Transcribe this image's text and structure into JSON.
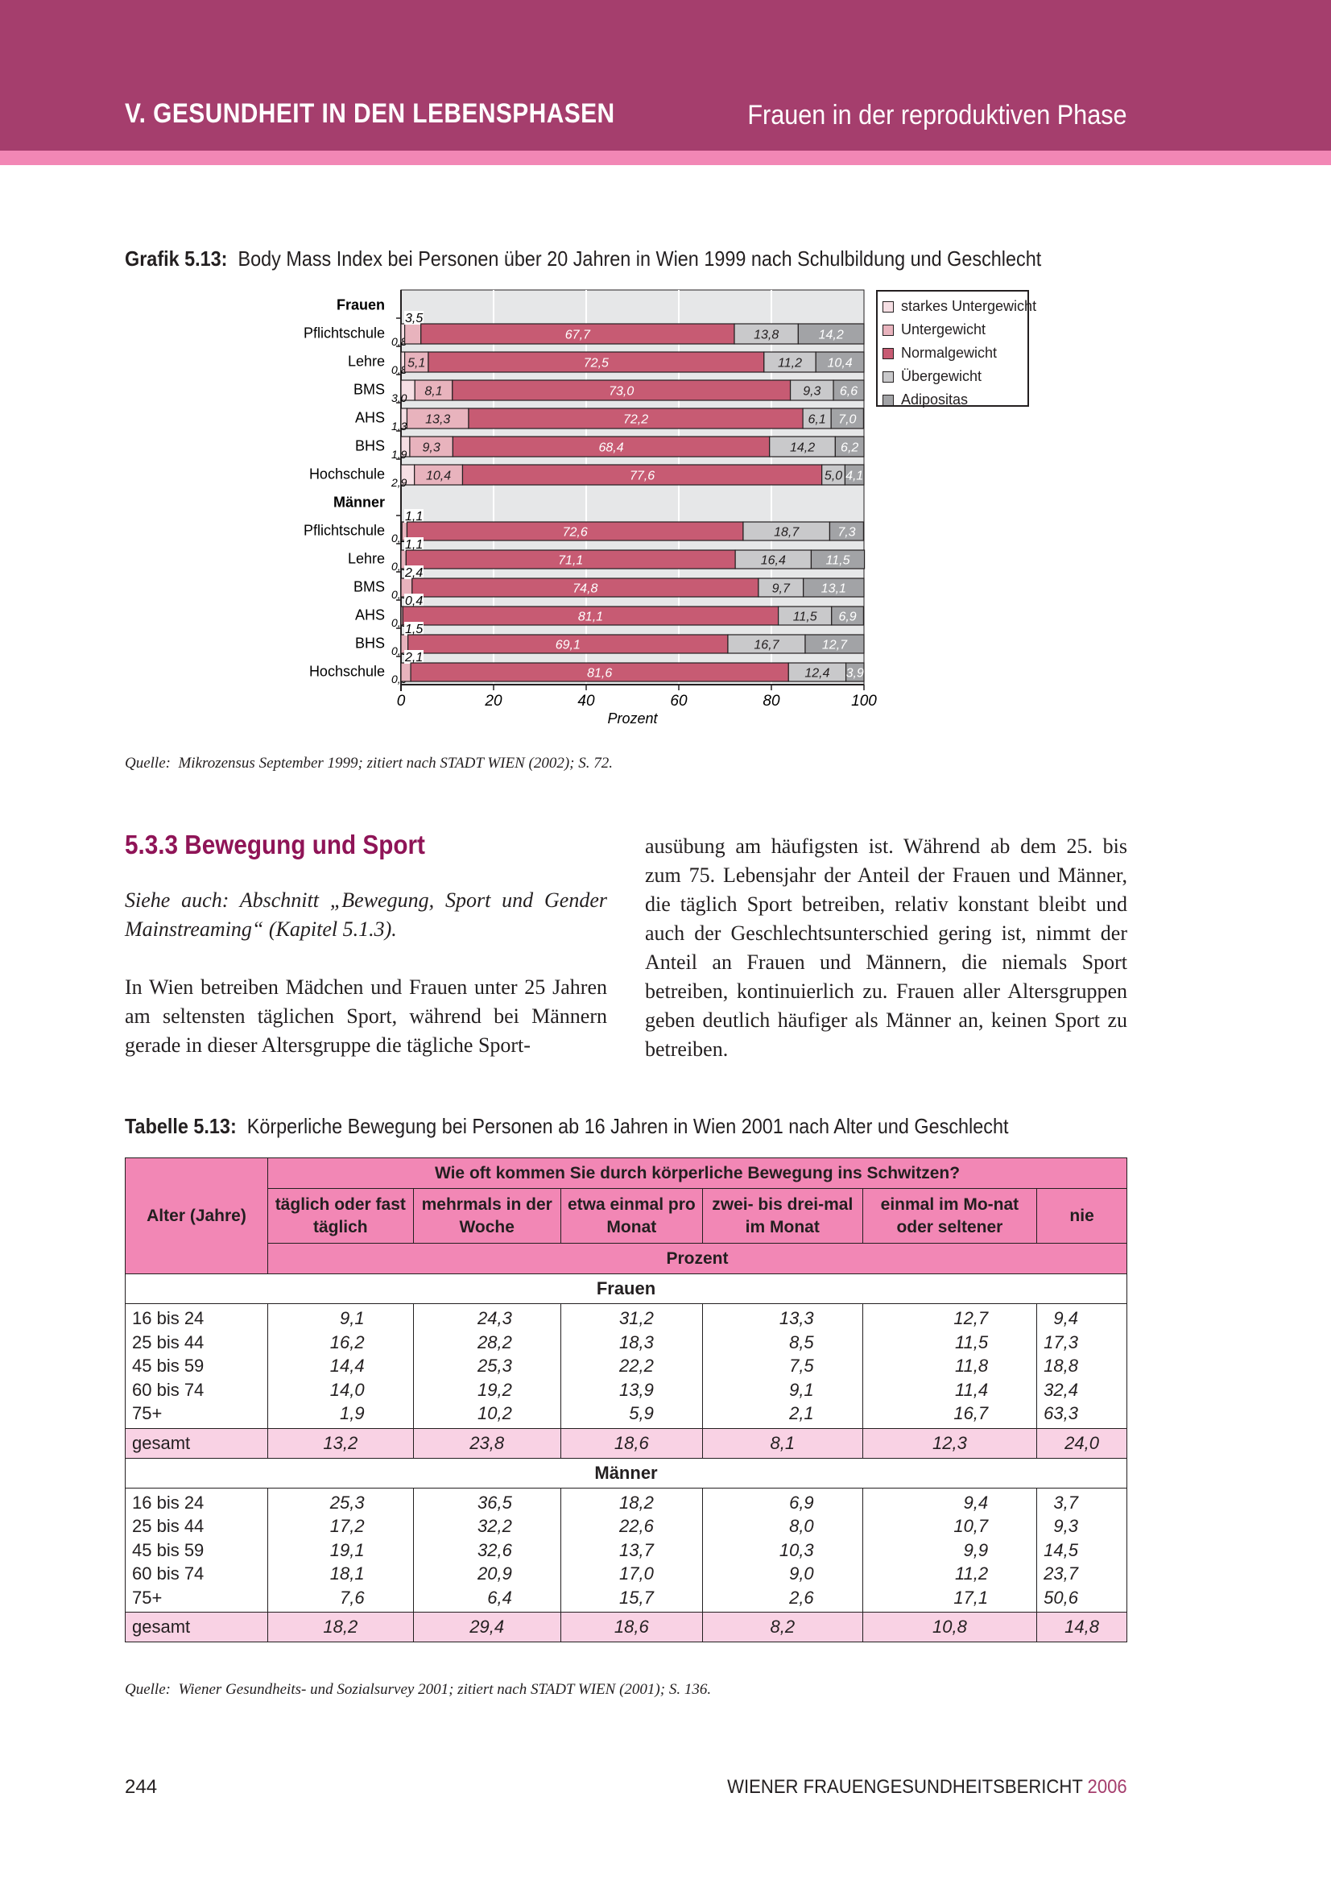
{
  "header": {
    "chapter": "V. GESUNDHEIT IN DEN LEBENSPHASEN",
    "section": "Frauen in der reproduktiven Phase",
    "color": "#a53e6d",
    "stripe_color": "#f287b5"
  },
  "figure": {
    "label": "Grafik 5.13:",
    "title": "Body Mass Index bei Personen über 20 Jahren in Wien 1999 nach Schulbildung und Geschlecht",
    "source_label": "Quelle:",
    "source": "Mikrozensus September 1999; zitiert nach STADT WIEN (2002); S. 72."
  },
  "chart_data": {
    "type": "bar",
    "orientation": "horizontal",
    "stacked": true,
    "xlabel": "Prozent",
    "xlim": [
      0,
      100
    ],
    "xticks": [
      "0",
      "20",
      "40",
      "60",
      "80",
      "100"
    ],
    "grid": true,
    "legend_placement": "right",
    "series": [
      {
        "name": "starkes Untergewicht",
        "color": "#f6dfe4"
      },
      {
        "name": "Untergewicht",
        "color": "#e8b3bd"
      },
      {
        "name": "Normalgewicht",
        "color": "#c75b73"
      },
      {
        "name": "Übergewicht",
        "color": "#c9c9cb"
      },
      {
        "name": "Adipositas",
        "color": "#a2a3a6"
      }
    ],
    "groups": [
      {
        "name": "Frauen",
        "rows": [
          {
            "label": "Pflichtschule",
            "values": [
              0.8,
              3.5,
              67.7,
              13.8,
              14.2
            ],
            "labels": [
              "0,8",
              "3,5",
              "67,7",
              "13,8",
              "14,2"
            ]
          },
          {
            "label": "Lehre",
            "values": [
              0.8,
              5.1,
              72.5,
              11.2,
              10.4
            ],
            "labels": [
              "0,8",
              "5,1",
              "72,5",
              "11,2",
              "10,4"
            ]
          },
          {
            "label": "BMS",
            "values": [
              3.0,
              8.1,
              73.0,
              9.3,
              6.6
            ],
            "labels": [
              "3,0",
              "8,1",
              "73,0",
              "9,3",
              "6,6"
            ]
          },
          {
            "label": "AHS",
            "values": [
              1.3,
              13.3,
              72.2,
              6.1,
              7.0
            ],
            "labels": [
              "1,3",
              "13,3",
              "72,2",
              "6,1",
              "7,0"
            ]
          },
          {
            "label": "BHS",
            "values": [
              1.9,
              9.3,
              68.4,
              14.2,
              6.2
            ],
            "labels": [
              "1,9",
              "9,3",
              "68,4",
              "14,2",
              "6,2"
            ]
          },
          {
            "label": "Hochschule",
            "values": [
              2.9,
              10.4,
              77.6,
              5.0,
              4.1
            ],
            "labels": [
              "2,9",
              "10,4",
              "77,6",
              "5,0",
              "4,1"
            ]
          }
        ]
      },
      {
        "name": "Männer",
        "rows": [
          {
            "label": "Pflichtschule",
            "values": [
              0.2,
              1.1,
              72.6,
              18.7,
              7.3
            ],
            "labels": [
              "0,2",
              "1,1",
              "72,6",
              "18,7",
              "7,3"
            ]
          },
          {
            "label": "Lehre",
            "values": [
              0.0,
              1.1,
              71.1,
              16.4,
              11.5
            ],
            "labels": [
              "0,0",
              "1,1",
              "71,1",
              "16,4",
              "11,5"
            ]
          },
          {
            "label": "BMS",
            "values": [
              0.0,
              2.4,
              74.8,
              9.7,
              13.1
            ],
            "labels": [
              "0,0",
              "2,4",
              "74,8",
              "9,7",
              "13,1"
            ]
          },
          {
            "label": "AHS",
            "values": [
              0.0,
              0.4,
              81.1,
              11.5,
              6.9
            ],
            "labels": [
              "0,0",
              "0,4",
              "81,1",
              "11,5",
              "6,9"
            ]
          },
          {
            "label": "BHS",
            "values": [
              0.0,
              1.5,
              69.1,
              16.7,
              12.7
            ],
            "labels": [
              "0,0",
              "1,5",
              "69,1",
              "16,7",
              "12,7"
            ]
          },
          {
            "label": "Hochschule",
            "values": [
              0.0,
              2.1,
              81.6,
              12.4,
              3.9
            ],
            "labels": [
              "0,0",
              "2,1",
              "81,6",
              "12,4",
              "3,9"
            ]
          }
        ]
      }
    ]
  },
  "section": {
    "heading": "5.3.3  Bewegung und Sport",
    "see_also": "Siehe auch: Abschnitt „Bewegung, Sport und Gender Mainstreaming“ (Kapitel 5.1.3).",
    "para_left": "In Wien betreiben Mädchen und Frauen unter 25 Jahren am seltensten täglichen Sport, während bei Männern gerade in dieser Altersgruppe die tägliche Sport-",
    "para_right": "ausübung am häufigsten ist. Während ab dem 25. bis zum 75. Lebensjahr der Anteil der Frauen und Männer, die täglich Sport betreiben, relativ konstant bleibt und auch der Geschlechtsunterschied gering ist, nimmt der Anteil an Frauen und Männern, die niemals Sport betreiben, kontinuierlich zu. Frauen aller Altersgruppen geben deutlich häufiger als Männer an, keinen Sport zu betreiben."
  },
  "table": {
    "label": "Tabelle 5.13:",
    "title": "Körperliche Bewegung bei Personen ab 16 Jahren in Wien 2001 nach Alter und Geschlecht",
    "row_header": "Alter (Jahre)",
    "question": "Wie oft kommen Sie durch körperliche Bewegung ins Schwitzen?",
    "columns": [
      "täglich oder fast täglich",
      "mehrmals in der Woche",
      "etwa einmal pro Monat",
      "zwei- bis drei-mal im  Monat",
      "einmal im Mo-nat  oder seltener",
      "nie"
    ],
    "unit": "Prozent",
    "groups": [
      {
        "name": "Frauen",
        "rows": [
          {
            "age": "16 bis 24",
            "values": [
              "9,1",
              "24,3",
              "31,2",
              "13,3",
              "12,7",
              "9,4"
            ]
          },
          {
            "age": "25 bis 44",
            "values": [
              "16,2",
              "28,2",
              "18,3",
              "8,5",
              "11,5",
              "17,3"
            ]
          },
          {
            "age": "45 bis 59",
            "values": [
              "14,4",
              "25,3",
              "22,2",
              "7,5",
              "11,8",
              "18,8"
            ]
          },
          {
            "age": "60 bis 74",
            "values": [
              "14,0",
              "19,2",
              "13,9",
              "9,1",
              "11,4",
              "32,4"
            ]
          },
          {
            "age": "75+",
            "values": [
              "1,9",
              "10,2",
              "5,9",
              "2,1",
              "16,7",
              "63,3"
            ]
          }
        ],
        "total": {
          "age": "gesamt",
          "values": [
            "13,2",
            "23,8",
            "18,6",
            "8,1",
            "12,3",
            "24,0"
          ]
        }
      },
      {
        "name": "Männer",
        "rows": [
          {
            "age": "16 bis 24",
            "values": [
              "25,3",
              "36,5",
              "18,2",
              "6,9",
              "9,4",
              "3,7"
            ]
          },
          {
            "age": "25 bis 44",
            "values": [
              "17,2",
              "32,2",
              "22,6",
              "8,0",
              "10,7",
              "9,3"
            ]
          },
          {
            "age": "45 bis 59",
            "values": [
              "19,1",
              "32,6",
              "13,7",
              "10,3",
              "9,9",
              "14,5"
            ]
          },
          {
            "age": "60 bis 74",
            "values": [
              "18,1",
              "20,9",
              "17,0",
              "9,0",
              "11,2",
              "23,7"
            ]
          },
          {
            "age": "75+",
            "values": [
              "7,6",
              "6,4",
              "15,7",
              "2,6",
              "17,1",
              "50,6"
            ]
          }
        ],
        "total": {
          "age": "gesamt",
          "values": [
            "18,2",
            "29,4",
            "18,6",
            "8,2",
            "10,8",
            "14,8"
          ]
        }
      }
    ],
    "source_label": "Quelle:",
    "source": "Wiener Gesundheits- und Sozialsurvey 2001; zitiert nach STADT WIEN (2001); S. 136."
  },
  "footer": {
    "page": "244",
    "title": "WIENER FRAUENGESUNDHEITSBERICHT ",
    "year": "2006",
    "year_color": "#a53e6d"
  }
}
